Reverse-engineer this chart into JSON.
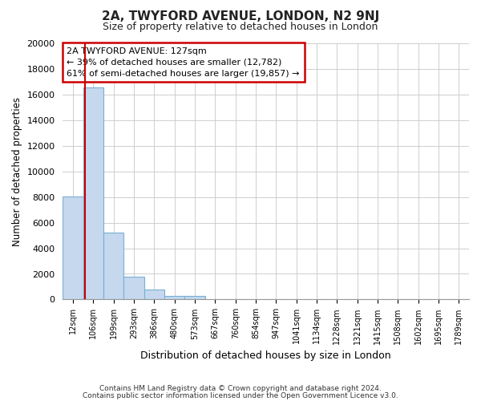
{
  "title": "2A, TWYFORD AVENUE, LONDON, N2 9NJ",
  "subtitle": "Size of property relative to detached houses in London",
  "xlabel": "Distribution of detached houses by size in London",
  "ylabel": "Number of detached properties",
  "bar_heights": [
    8050,
    16550,
    5200,
    1750,
    750,
    300,
    300,
    0,
    0,
    0,
    0,
    0,
    0,
    0,
    0,
    0,
    0,
    0,
    0,
    0
  ],
  "bar_labels": [
    "12sqm",
    "106sqm",
    "199sqm",
    "293sqm",
    "386sqm",
    "480sqm",
    "573sqm",
    "667sqm",
    "760sqm",
    "854sqm",
    "947sqm",
    "1041sqm",
    "1134sqm",
    "1228sqm",
    "1321sqm",
    "1415sqm",
    "1508sqm",
    "1602sqm",
    "1695sqm",
    "1789sqm"
  ],
  "num_bars": 20,
  "bar_color": "#c5d8ee",
  "bar_edge_color": "#7aafd4",
  "vline_color": "#cc0000",
  "vline_pos": 0.58,
  "ylim": [
    0,
    20000
  ],
  "yticks": [
    0,
    2000,
    4000,
    6000,
    8000,
    10000,
    12000,
    14000,
    16000,
    18000,
    20000
  ],
  "annotation_title": "2A TWYFORD AVENUE: 127sqm",
  "annotation_line1": "← 39% of detached houses are smaller (12,782)",
  "annotation_line2": "61% of semi-detached houses are larger (19,857) →",
  "annotation_box_color": "#ffffff",
  "annotation_box_edge": "#cc0000",
  "footer1": "Contains HM Land Registry data © Crown copyright and database right 2024.",
  "footer2": "Contains public sector information licensed under the Open Government Licence v3.0.",
  "background_color": "#ffffff",
  "grid_color": "#c8c8c8"
}
